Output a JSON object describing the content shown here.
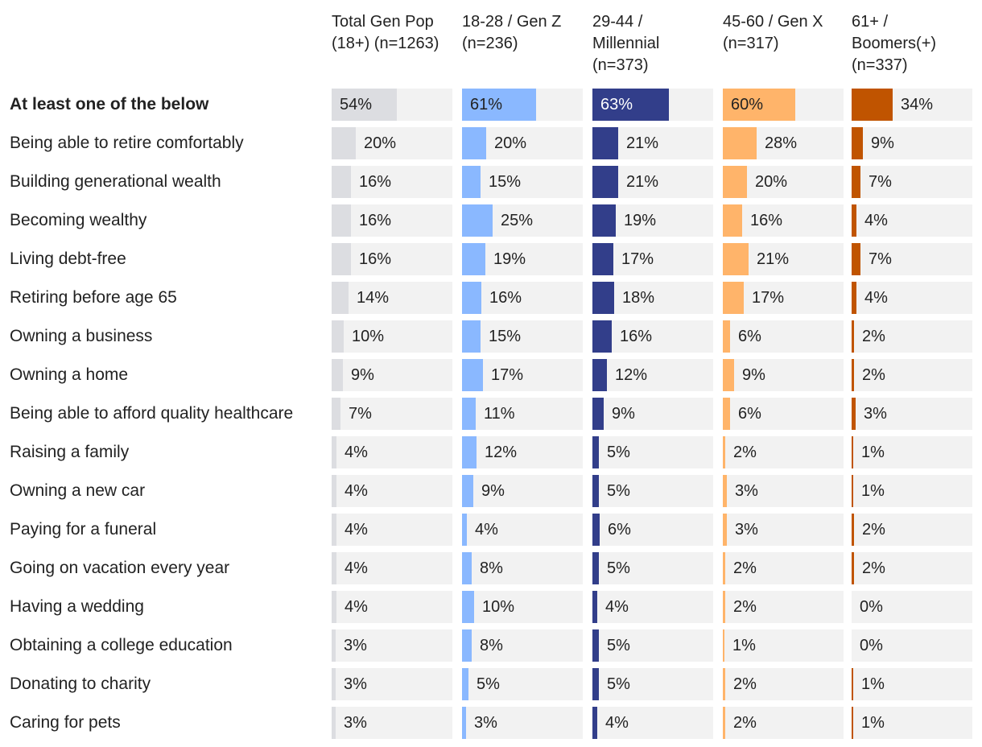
{
  "chart_data": {
    "type": "table",
    "title": "",
    "xlabel": "",
    "ylabel": "",
    "xlim": [
      0,
      100
    ],
    "columns": [
      {
        "line1": "Total Gen Pop",
        "line2": "(18+) (n=1263)",
        "line3": "",
        "color": "#dcdde1"
      },
      {
        "line1": "18-28 / Gen Z",
        "line2": "(n=236)",
        "line3": "",
        "color": "#8ab8ff"
      },
      {
        "line1": "29-44 /",
        "line2": "Millennial",
        "line3": "(n=373)",
        "color": "#323e8a"
      },
      {
        "line1": "45-60 / Gen X",
        "line2": "(n=317)",
        "line3": "",
        "color": "#ffb46a"
      },
      {
        "line1": "61+ /",
        "line2": "Boomers(+)",
        "line3": "(n=337)",
        "color": "#c05400"
      }
    ],
    "rows": [
      {
        "label": "At least one of the below",
        "bold": true,
        "values": [
          54,
          61,
          63,
          60,
          34
        ]
      },
      {
        "label": "Being able to retire comfortably",
        "bold": false,
        "values": [
          20,
          20,
          21,
          28,
          9
        ]
      },
      {
        "label": "Building generational wealth",
        "bold": false,
        "values": [
          16,
          15,
          21,
          20,
          7
        ]
      },
      {
        "label": "Becoming wealthy",
        "bold": false,
        "values": [
          16,
          25,
          19,
          16,
          4
        ]
      },
      {
        "label": "Living debt-free",
        "bold": false,
        "values": [
          16,
          19,
          17,
          21,
          7
        ]
      },
      {
        "label": "Retiring before age 65",
        "bold": false,
        "values": [
          14,
          16,
          18,
          17,
          4
        ]
      },
      {
        "label": "Owning a business",
        "bold": false,
        "values": [
          10,
          15,
          16,
          6,
          2
        ]
      },
      {
        "label": "Owning a home",
        "bold": false,
        "values": [
          9,
          17,
          12,
          9,
          2
        ]
      },
      {
        "label": "Being able to afford quality healthcare",
        "bold": false,
        "values": [
          7,
          11,
          9,
          6,
          3
        ]
      },
      {
        "label": "Raising a family",
        "bold": false,
        "values": [
          4,
          12,
          5,
          2,
          1
        ]
      },
      {
        "label": "Owning a new car",
        "bold": false,
        "values": [
          4,
          9,
          5,
          3,
          1
        ]
      },
      {
        "label": "Paying for a funeral",
        "bold": false,
        "values": [
          4,
          4,
          6,
          3,
          2
        ]
      },
      {
        "label": "Going on vacation every year",
        "bold": false,
        "values": [
          4,
          8,
          5,
          2,
          2
        ]
      },
      {
        "label": "Having a wedding",
        "bold": false,
        "values": [
          4,
          10,
          4,
          2,
          0
        ]
      },
      {
        "label": "Obtaining a college education",
        "bold": false,
        "values": [
          3,
          8,
          5,
          1,
          0
        ]
      },
      {
        "label": "Donating to charity",
        "bold": false,
        "values": [
          3,
          5,
          5,
          2,
          1
        ]
      },
      {
        "label": "Caring for pets",
        "bold": false,
        "values": [
          3,
          3,
          4,
          2,
          1
        ]
      }
    ]
  }
}
